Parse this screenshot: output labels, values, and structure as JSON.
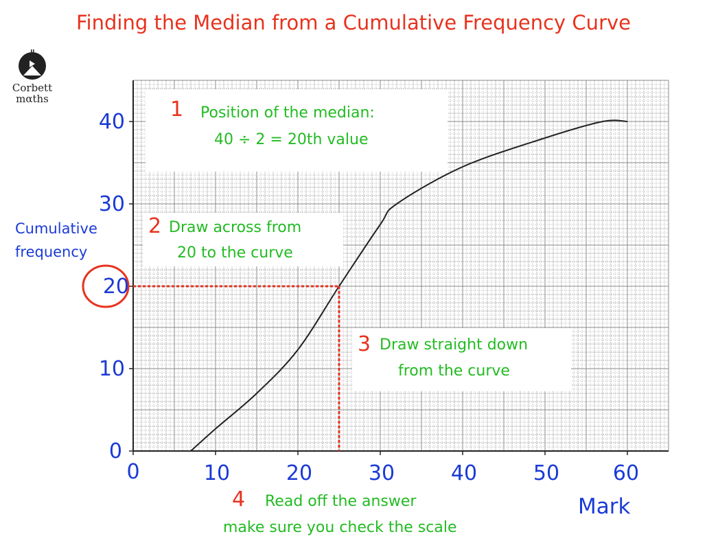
{
  "title": "Finding the Median from a Cumulative Frequency Curve",
  "logo": {
    "text_line1": "Corbett",
    "text_line2": "mαths"
  },
  "steps": [
    {
      "number": "1",
      "lines": [
        "Position of the median:",
        "40 ÷ 2 = 20th value"
      ]
    },
    {
      "number": "2",
      "lines": [
        "Draw across from",
        "20 to the curve"
      ]
    },
    {
      "number": "3",
      "lines": [
        "Draw straight down",
        "from the curve"
      ]
    },
    {
      "number": "4",
      "lines": [
        "Read off the answer",
        "make sure you check the scale"
      ]
    }
  ],
  "colors": {
    "axis_text": "#1a3ad6",
    "title": "#e8321e",
    "step_text": "#22bb22",
    "guide_line": "#e8321e",
    "curve": "#222222"
  },
  "chart_data": {
    "type": "line",
    "title": "Finding the Median from a Cumulative Frequency Curve",
    "xlabel": "Mark",
    "ylabel_lines": [
      "Cumulative",
      "frequency"
    ],
    "xlim": [
      0,
      65
    ],
    "ylim": [
      0,
      45
    ],
    "x_ticks": [
      "0",
      "10",
      "20",
      "30",
      "40",
      "50",
      "60"
    ],
    "y_ticks": [
      "0",
      "10",
      "20",
      "30",
      "40"
    ],
    "grid": true,
    "x": [
      7,
      10,
      15,
      20,
      25,
      30,
      32,
      40,
      50,
      57,
      60
    ],
    "y": [
      0,
      2.7,
      7,
      12.3,
      20,
      27.5,
      30,
      34.5,
      38,
      40,
      40
    ],
    "median_guide": {
      "cumulative_frequency": 20,
      "mark": 25
    },
    "highlighted_tick": "20"
  }
}
